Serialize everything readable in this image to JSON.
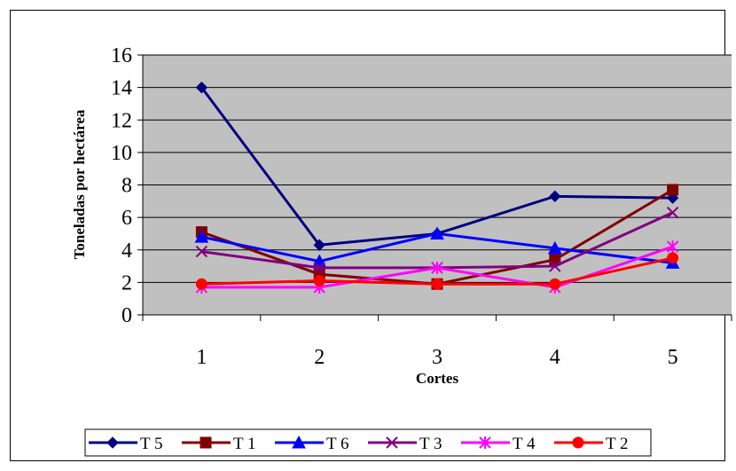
{
  "chart_data": {
    "type": "line",
    "xlabel": "Cortes",
    "ylabel": "Toneladas por hectárea",
    "categories": [
      "1",
      "2",
      "3",
      "4",
      "5"
    ],
    "ylim": [
      0,
      16
    ],
    "yticks": [
      0,
      2,
      4,
      6,
      8,
      10,
      12,
      14,
      16
    ],
    "ytick_labels": [
      "0",
      "2",
      "4",
      "6",
      "8",
      "10",
      "12",
      "14",
      "16"
    ],
    "grid": true,
    "plot_background": "#C0C0C0",
    "legend_position": "bottom",
    "series": [
      {
        "name": "T 5",
        "values": [
          14.0,
          4.3,
          5.0,
          7.3,
          7.2
        ],
        "color": "#000080",
        "marker": "diamond"
      },
      {
        "name": "T 1",
        "values": [
          5.1,
          2.5,
          1.9,
          3.4,
          7.7
        ],
        "color": "#800000",
        "marker": "square"
      },
      {
        "name": "T 6",
        "values": [
          4.8,
          3.3,
          5.0,
          4.1,
          3.2
        ],
        "color": "#0000FF",
        "marker": "triangle"
      },
      {
        "name": "T 3",
        "values": [
          3.9,
          2.9,
          2.9,
          3.0,
          6.3
        ],
        "color": "#800080",
        "marker": "x"
      },
      {
        "name": "T 4",
        "values": [
          1.7,
          1.7,
          2.9,
          1.7,
          4.2
        ],
        "color": "#FF00FF",
        "marker": "star"
      },
      {
        "name": "T 2",
        "values": [
          1.9,
          2.1,
          1.9,
          1.9,
          3.5
        ],
        "color": "#FF0000",
        "marker": "circle"
      }
    ]
  }
}
